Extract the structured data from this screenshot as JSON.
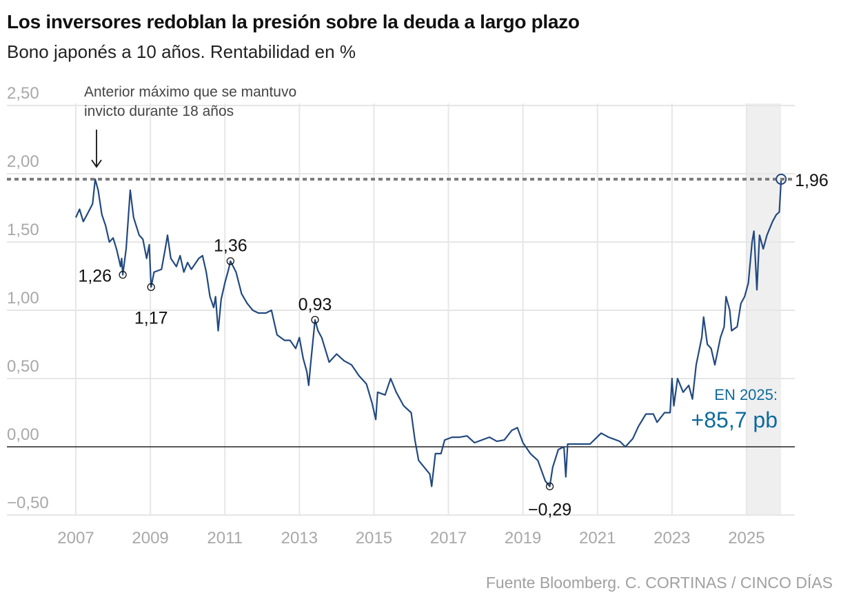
{
  "chart_data": {
    "type": "line",
    "title": "Los inversores redoblan la presión sobre la deuda a largo plazo",
    "subtitle": "Bono japonés a 10 años. Rentabilidad en %",
    "source": "Fuente Bloomberg. C. CORTINAS / CINCO DÍAS",
    "xlabel": "",
    "ylabel": "",
    "xlim": [
      2007,
      2026.35
    ],
    "ylim": [
      -0.5,
      2.5
    ],
    "grid": true,
    "x_ticks": [
      2007,
      2009,
      2011,
      2013,
      2015,
      2017,
      2019,
      2021,
      2023,
      2025
    ],
    "x_tick_labels": [
      "2007",
      "2009",
      "2011",
      "2013",
      "2015",
      "2017",
      "2019",
      "2021",
      "2023",
      "2025"
    ],
    "y_ticks": [
      2.5,
      2.0,
      1.5,
      1.0,
      0.5,
      0.0,
      -0.5
    ],
    "y_tick_labels": [
      "2,50",
      "2,00",
      "1,50",
      "1,00",
      "0,50",
      "0,00",
      "−0,50"
    ],
    "line_color": "#22497f",
    "reference_line": {
      "value": 1.96,
      "style": "dotted",
      "color": "#7a7a7a"
    },
    "shaded_period": {
      "from": 2025,
      "to": 2025.93,
      "color": "#efefef"
    },
    "annotations": {
      "previous_max": "Anterior máximo que se mantuvo invicto durante 18 años",
      "previous_max_lines": [
        "Anterior máximo que se mantuvo",
        "invicto durante 18 años"
      ],
      "year_label": "EN 2025:",
      "year_change": "+85,7 pb",
      "accent_color": "#0e6a9c"
    },
    "labeled_points": [
      {
        "x": 2008.26,
        "y": 1.26,
        "label": "1,26"
      },
      {
        "x": 2009.02,
        "y": 1.17,
        "label": "1,17"
      },
      {
        "x": 2011.15,
        "y": 1.36,
        "label": "1,36"
      },
      {
        "x": 2013.42,
        "y": 0.93,
        "label": "0,93"
      },
      {
        "x": 2019.72,
        "y": -0.29,
        "label": "−0,29"
      },
      {
        "x": 2025.93,
        "y": 1.96,
        "label": "1,96"
      }
    ],
    "series": [
      {
        "x": [
          2007.0,
          2007.1,
          2007.2,
          2007.3,
          2007.45,
          2007.52,
          2007.6,
          2007.7,
          2007.8,
          2007.9,
          2008.0,
          2008.1,
          2008.2,
          2008.23,
          2008.26,
          2008.35,
          2008.46,
          2008.55,
          2008.7,
          2008.8,
          2008.9,
          2008.97,
          2009.02,
          2009.1,
          2009.3,
          2009.4,
          2009.46,
          2009.55,
          2009.7,
          2009.8,
          2009.9,
          2010.0,
          2010.1,
          2010.3,
          2010.4,
          2010.5,
          2010.6,
          2010.7,
          2010.75,
          2010.82,
          2010.9,
          2011.0,
          2011.1,
          2011.15,
          2011.3,
          2011.45,
          2011.6,
          2011.75,
          2011.9,
          2012.1,
          2012.25,
          2012.4,
          2012.6,
          2012.75,
          2012.9,
          2013.0,
          2013.1,
          2013.2,
          2013.25,
          2013.3,
          2013.42,
          2013.5,
          2013.6,
          2013.8,
          2014.0,
          2014.2,
          2014.4,
          2014.6,
          2014.8,
          2014.95,
          2015.05,
          2015.1,
          2015.3,
          2015.45,
          2015.6,
          2015.8,
          2016.0,
          2016.1,
          2016.2,
          2016.35,
          2016.5,
          2016.55,
          2016.65,
          2016.8,
          2016.9,
          2017.1,
          2017.3,
          2017.5,
          2017.7,
          2017.9,
          2018.1,
          2018.3,
          2018.5,
          2018.7,
          2018.85,
          2019.0,
          2019.2,
          2019.4,
          2019.6,
          2019.72,
          2019.8,
          2019.95,
          2020.1,
          2020.15,
          2020.2,
          2020.4,
          2020.6,
          2020.8,
          2021.1,
          2021.3,
          2021.6,
          2021.75,
          2021.95,
          2022.1,
          2022.3,
          2022.5,
          2022.6,
          2022.8,
          2022.95,
          2023.0,
          2023.05,
          2023.15,
          2023.3,
          2023.45,
          2023.55,
          2023.65,
          2023.8,
          2023.85,
          2023.95,
          2024.05,
          2024.15,
          2024.3,
          2024.4,
          2024.45,
          2024.55,
          2024.6,
          2024.75,
          2024.85,
          2024.95,
          2025.05,
          2025.15,
          2025.2,
          2025.28,
          2025.35,
          2025.45,
          2025.55,
          2025.7,
          2025.8,
          2025.88,
          2025.93
        ],
        "y": [
          1.68,
          1.74,
          1.65,
          1.7,
          1.78,
          1.96,
          1.88,
          1.7,
          1.62,
          1.5,
          1.53,
          1.44,
          1.32,
          1.38,
          1.26,
          1.45,
          1.88,
          1.68,
          1.55,
          1.52,
          1.38,
          1.48,
          1.17,
          1.28,
          1.3,
          1.45,
          1.55,
          1.38,
          1.32,
          1.4,
          1.28,
          1.35,
          1.3,
          1.38,
          1.4,
          1.28,
          1.1,
          1.02,
          1.1,
          0.85,
          1.08,
          1.2,
          1.3,
          1.36,
          1.28,
          1.12,
          1.05,
          1.0,
          0.98,
          0.98,
          1.0,
          0.82,
          0.78,
          0.78,
          0.72,
          0.8,
          0.65,
          0.55,
          0.45,
          0.6,
          0.93,
          0.85,
          0.8,
          0.62,
          0.68,
          0.63,
          0.6,
          0.52,
          0.46,
          0.32,
          0.2,
          0.4,
          0.38,
          0.5,
          0.4,
          0.3,
          0.25,
          0.05,
          -0.1,
          -0.15,
          -0.2,
          -0.29,
          -0.05,
          -0.05,
          0.05,
          0.07,
          0.07,
          0.08,
          0.03,
          0.05,
          0.07,
          0.04,
          0.05,
          0.12,
          0.14,
          0.03,
          -0.05,
          -0.1,
          -0.25,
          -0.29,
          -0.15,
          -0.02,
          0.0,
          -0.22,
          0.02,
          0.02,
          0.02,
          0.02,
          0.1,
          0.07,
          0.04,
          0.0,
          0.06,
          0.15,
          0.24,
          0.24,
          0.18,
          0.25,
          0.25,
          0.5,
          0.3,
          0.5,
          0.4,
          0.45,
          0.35,
          0.6,
          0.8,
          0.95,
          0.75,
          0.72,
          0.6,
          0.8,
          0.88,
          1.1,
          1.0,
          0.85,
          0.88,
          1.05,
          1.1,
          1.2,
          1.5,
          1.58,
          1.15,
          1.55,
          1.45,
          1.55,
          1.65,
          1.7,
          1.72,
          1.96
        ]
      }
    ]
  }
}
